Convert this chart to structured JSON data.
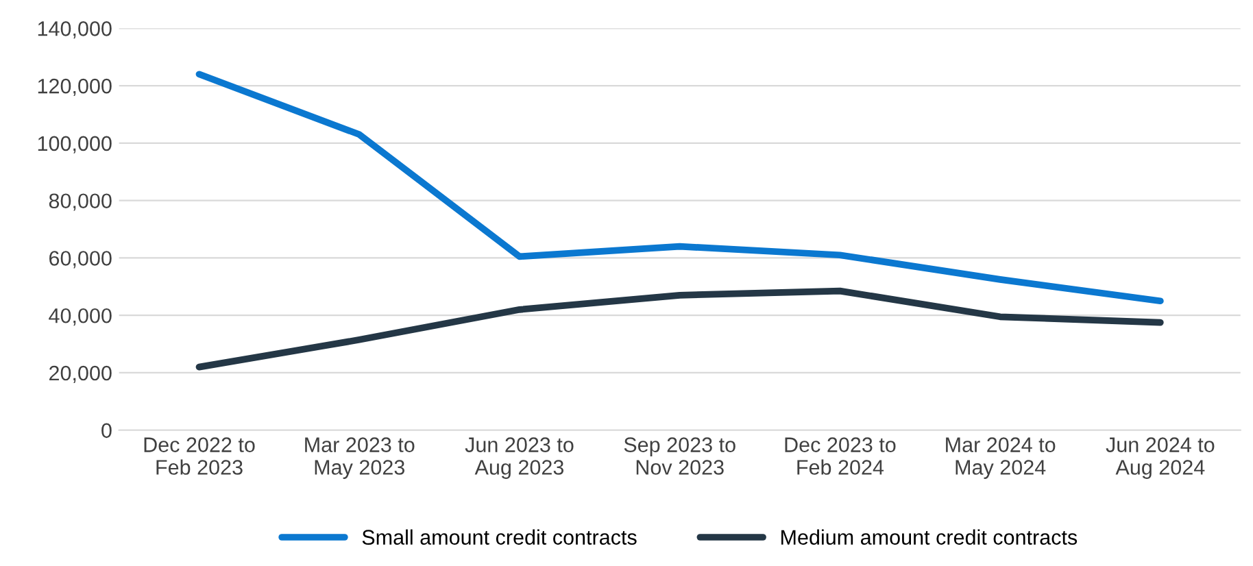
{
  "chart_data": {
    "type": "line",
    "categories": [
      "Dec 2022 to\nFeb 2023",
      "Mar 2023 to\nMay 2023",
      "Jun 2023 to\nAug 2023",
      "Sep 2023 to\nNov 2023",
      "Dec 2023 to\nFeb 2024",
      "Mar 2024 to\nMay 2024",
      "Jun 2024 to\nAug 2024"
    ],
    "series": [
      {
        "name": "Small amount credit contracts",
        "color": "#0b78d0",
        "values": [
          124000,
          103000,
          60500,
          64000,
          61000,
          52500,
          45000
        ]
      },
      {
        "name": "Medium amount credit contracts",
        "color": "#243746",
        "values": [
          22000,
          31500,
          42000,
          47000,
          48500,
          39500,
          37500
        ]
      }
    ],
    "ylim": [
      0,
      140000
    ],
    "yticks": [
      {
        "value": 0,
        "label": "0"
      },
      {
        "value": 20000,
        "label": "20,000"
      },
      {
        "value": 40000,
        "label": "40,000"
      },
      {
        "value": 60000,
        "label": "60,000"
      },
      {
        "value": 80000,
        "label": "80,000"
      },
      {
        "value": 100000,
        "label": "100,000"
      },
      {
        "value": 120000,
        "label": "120,000"
      },
      {
        "value": 140000,
        "label": "140,000"
      }
    ],
    "grid": "y",
    "legend": "bottom",
    "marker": "none",
    "line_style": "solid"
  }
}
